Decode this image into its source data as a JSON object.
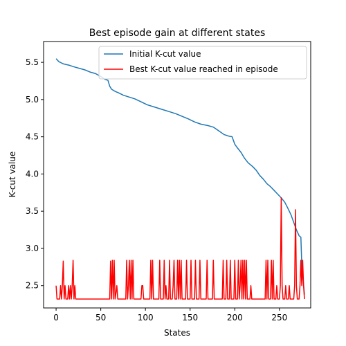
{
  "chart_data": {
    "type": "line",
    "title": "Best episode gain at different states",
    "xlabel": "States",
    "ylabel": "K-cut value",
    "xlim": [
      -14,
      285
    ],
    "ylim": [
      2.2,
      5.78
    ],
    "x_ticks": [
      0,
      50,
      100,
      150,
      200,
      250
    ],
    "y_ticks": [
      2.5,
      3.0,
      3.5,
      4.0,
      4.5,
      5.0,
      5.5
    ],
    "x_tick_labels": [
      "0",
      "50",
      "100",
      "150",
      "200",
      "250"
    ],
    "y_tick_labels": [
      "2.5",
      "3.0",
      "3.5",
      "4.0",
      "4.5",
      "5.0",
      "5.5"
    ],
    "grid": false,
    "legend_position": "top-right",
    "series": [
      {
        "name": "Initial K-cut value",
        "color": "#1f77b4",
        "points": [
          [
            0,
            5.55
          ],
          [
            3,
            5.51
          ],
          [
            8,
            5.48
          ],
          [
            15,
            5.46
          ],
          [
            20,
            5.44
          ],
          [
            26,
            5.42
          ],
          [
            32,
            5.4
          ],
          [
            38,
            5.37
          ],
          [
            44,
            5.35
          ],
          [
            50,
            5.31
          ],
          [
            55,
            5.27
          ],
          [
            58,
            5.26
          ],
          [
            60,
            5.18
          ],
          [
            62,
            5.14
          ],
          [
            66,
            5.11
          ],
          [
            70,
            5.09
          ],
          [
            75,
            5.06
          ],
          [
            80,
            5.04
          ],
          [
            88,
            5.01
          ],
          [
            95,
            4.97
          ],
          [
            102,
            4.93
          ],
          [
            110,
            4.9
          ],
          [
            118,
            4.87
          ],
          [
            126,
            4.84
          ],
          [
            134,
            4.81
          ],
          [
            140,
            4.78
          ],
          [
            148,
            4.74
          ],
          [
            155,
            4.7
          ],
          [
            162,
            4.67
          ],
          [
            170,
            4.65
          ],
          [
            176,
            4.63
          ],
          [
            182,
            4.58
          ],
          [
            188,
            4.53
          ],
          [
            193,
            4.51
          ],
          [
            197,
            4.5
          ],
          [
            200,
            4.4
          ],
          [
            203,
            4.35
          ],
          [
            207,
            4.29
          ],
          [
            211,
            4.21
          ],
          [
            215,
            4.15
          ],
          [
            220,
            4.1
          ],
          [
            224,
            4.05
          ],
          [
            228,
            3.98
          ],
          [
            232,
            3.93
          ],
          [
            236,
            3.87
          ],
          [
            240,
            3.83
          ],
          [
            244,
            3.78
          ],
          [
            248,
            3.73
          ],
          [
            252,
            3.68
          ],
          [
            256,
            3.62
          ],
          [
            259,
            3.55
          ],
          [
            263,
            3.45
          ],
          [
            266,
            3.35
          ],
          [
            269,
            3.25
          ],
          [
            272,
            3.17
          ],
          [
            274,
            3.15
          ],
          [
            275,
            2.78
          ],
          [
            276,
            2.65
          ],
          [
            278,
            2.38
          ]
        ]
      },
      {
        "name": "Best K-cut value reached in episode",
        "color": "#ff0000",
        "points": [
          [
            0,
            2.5
          ],
          [
            1,
            2.32
          ],
          [
            4,
            2.32
          ],
          [
            5,
            2.5
          ],
          [
            6,
            2.32
          ],
          [
            7,
            2.5
          ],
          [
            8,
            2.83
          ],
          [
            9,
            2.32
          ],
          [
            10,
            2.5
          ],
          [
            11,
            2.32
          ],
          [
            13,
            2.32
          ],
          [
            14,
            2.5
          ],
          [
            15,
            2.32
          ],
          [
            16,
            2.5
          ],
          [
            17,
            2.32
          ],
          [
            18,
            2.5
          ],
          [
            19,
            2.84
          ],
          [
            20,
            2.32
          ],
          [
            21,
            2.5
          ],
          [
            22,
            2.32
          ],
          [
            60,
            2.32
          ],
          [
            61,
            2.83
          ],
          [
            62,
            2.32
          ],
          [
            63,
            2.84
          ],
          [
            64,
            2.32
          ],
          [
            65,
            2.84
          ],
          [
            66,
            2.32
          ],
          [
            67,
            2.4
          ],
          [
            68,
            2.5
          ],
          [
            69,
            2.32
          ],
          [
            78,
            2.32
          ],
          [
            79,
            2.84
          ],
          [
            80,
            2.32
          ],
          [
            81,
            2.5
          ],
          [
            82,
            2.84
          ],
          [
            83,
            2.32
          ],
          [
            84,
            2.84
          ],
          [
            85,
            2.32
          ],
          [
            86,
            2.84
          ],
          [
            87,
            2.32
          ],
          [
            95,
            2.32
          ],
          [
            96,
            2.5
          ],
          [
            97,
            2.5
          ],
          [
            98,
            2.32
          ],
          [
            105,
            2.32
          ],
          [
            106,
            2.84
          ],
          [
            107,
            2.32
          ],
          [
            108,
            2.84
          ],
          [
            109,
            2.32
          ],
          [
            115,
            2.32
          ],
          [
            116,
            2.84
          ],
          [
            117,
            2.32
          ],
          [
            120,
            2.32
          ],
          [
            121,
            2.84
          ],
          [
            122,
            2.32
          ],
          [
            123,
            2.5
          ],
          [
            124,
            2.32
          ],
          [
            126,
            2.32
          ],
          [
            127,
            2.84
          ],
          [
            128,
            2.32
          ],
          [
            130,
            2.32
          ],
          [
            131,
            2.5
          ],
          [
            132,
            2.84
          ],
          [
            133,
            2.32
          ],
          [
            135,
            2.32
          ],
          [
            136,
            2.84
          ],
          [
            137,
            2.32
          ],
          [
            138,
            2.84
          ],
          [
            139,
            2.32
          ],
          [
            140,
            2.84
          ],
          [
            141,
            2.32
          ],
          [
            145,
            2.32
          ],
          [
            146,
            2.84
          ],
          [
            147,
            2.32
          ],
          [
            150,
            2.32
          ],
          [
            151,
            2.84
          ],
          [
            152,
            2.32
          ],
          [
            155,
            2.32
          ],
          [
            156,
            2.84
          ],
          [
            157,
            2.32
          ],
          [
            160,
            2.32
          ],
          [
            161,
            2.84
          ],
          [
            162,
            2.32
          ],
          [
            168,
            2.32
          ],
          [
            169,
            2.84
          ],
          [
            170,
            2.32
          ],
          [
            175,
            2.32
          ],
          [
            176,
            2.84
          ],
          [
            177,
            2.32
          ],
          [
            186,
            2.32
          ],
          [
            187,
            2.84
          ],
          [
            188,
            2.32
          ],
          [
            190,
            2.32
          ],
          [
            191,
            2.84
          ],
          [
            192,
            2.32
          ],
          [
            194,
            2.32
          ],
          [
            195,
            2.84
          ],
          [
            196,
            2.32
          ],
          [
            199,
            2.32
          ],
          [
            200,
            2.84
          ],
          [
            201,
            2.32
          ],
          [
            203,
            2.32
          ],
          [
            204,
            2.84
          ],
          [
            205,
            2.32
          ],
          [
            206,
            2.5
          ],
          [
            207,
            2.84
          ],
          [
            208,
            2.32
          ],
          [
            209,
            2.84
          ],
          [
            210,
            2.32
          ],
          [
            211,
            2.84
          ],
          [
            212,
            2.32
          ],
          [
            213,
            2.84
          ],
          [
            214,
            2.32
          ],
          [
            217,
            2.32
          ],
          [
            218,
            2.5
          ],
          [
            219,
            2.32
          ],
          [
            234,
            2.32
          ],
          [
            235,
            2.84
          ],
          [
            236,
            2.32
          ],
          [
            237,
            2.84
          ],
          [
            238,
            2.32
          ],
          [
            240,
            2.32
          ],
          [
            241,
            2.84
          ],
          [
            242,
            2.32
          ],
          [
            243,
            2.84
          ],
          [
            244,
            2.32
          ],
          [
            246,
            2.32
          ],
          [
            247,
            2.5
          ],
          [
            248,
            2.32
          ],
          [
            250,
            2.32
          ],
          [
            251,
            2.5
          ],
          [
            252,
            3.68
          ],
          [
            253,
            2.5
          ],
          [
            254,
            2.32
          ],
          [
            256,
            2.32
          ],
          [
            257,
            2.5
          ],
          [
            258,
            2.32
          ],
          [
            260,
            2.32
          ],
          [
            261,
            2.5
          ],
          [
            262,
            2.32
          ],
          [
            266,
            2.32
          ],
          [
            267,
            2.5
          ],
          [
            268,
            3.52
          ],
          [
            269,
            2.5
          ],
          [
            270,
            2.32
          ],
          [
            272,
            2.32
          ],
          [
            273,
            2.5
          ],
          [
            274,
            2.84
          ],
          [
            275,
            2.5
          ],
          [
            276,
            2.84
          ],
          [
            277,
            2.5
          ],
          [
            278,
            2.32
          ]
        ]
      }
    ]
  }
}
